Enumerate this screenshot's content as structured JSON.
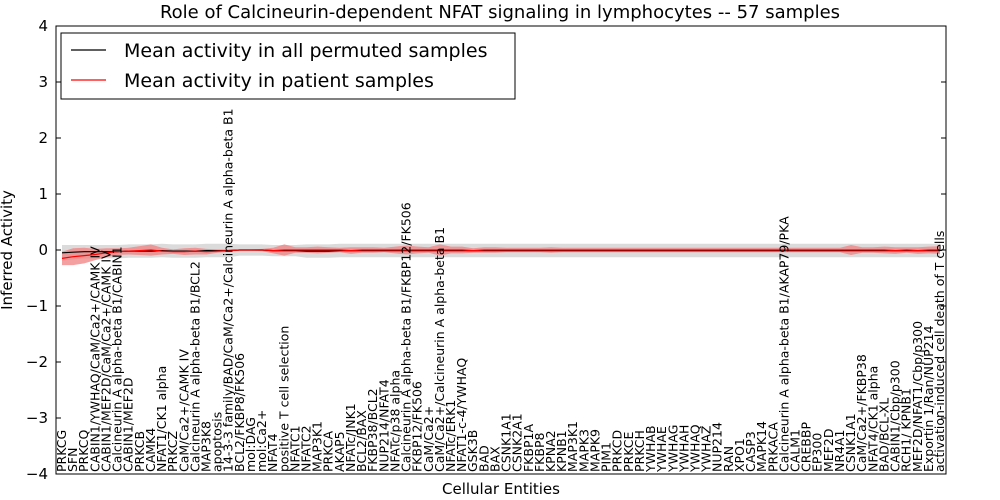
{
  "chart_data": {
    "type": "line",
    "title": "Role of Calcineurin-dependent NFAT signaling in lymphocytes -- 57 samples",
    "xlabel": "Cellular Entities",
    "ylabel": "Inferred Activity",
    "ylim": [
      -4,
      4
    ],
    "yticks": [
      "4",
      "3",
      "2",
      "1",
      "0",
      "−1",
      "−2",
      "−3",
      "−4"
    ],
    "legend": {
      "position": "top-left",
      "entries": [
        {
          "label": "Mean activity in all permuted samples",
          "color": "#000000"
        },
        {
          "label": "Mean activity in patient samples",
          "color": "#ff0000"
        }
      ]
    },
    "categories": [
      "PRKCG",
      "SFN",
      "PRKCQ",
      "CABIN1/YWHAQ/CaM/Ca2+/CAMK IV",
      "CABIN1/MEF2D/CaM/Ca2+/CAMK IV",
      "Calcineurin A alpha-beta B1/CABIN1",
      "CABIN1/MEF2D",
      "PRKCB",
      "CAMK4",
      "NFAT1/CK1 alpha",
      "PRKCZ",
      "CaM/Ca2+/CAMK IV",
      "Calcineurin A alpha-beta B1/BCL2",
      "MAP3K8",
      "apoptosis",
      "14-3-3 family/BAD/CaM/Ca2+/Calcineurin A alpha-beta B1",
      "BCL2/FKBP8/FK506",
      "mol:DAG",
      "mol:Ca2+",
      "NFAT4",
      "positive T cell selection",
      "NFATC1",
      "NFATC2",
      "MAP3K1",
      "PRKCA",
      "AKAP5",
      "NFATc/JNK1",
      "BCL2/BAX",
      "FKBP38/BCL2",
      "NUP214/NFAT4",
      "NFATc/p38 alpha",
      "Calcineurin A alpha-beta B1/FKBP12/FK506",
      "FKBP12/FK506",
      "CaM/Ca2+",
      "CaM/Ca2+/Calcineurin A alpha-beta B1",
      "NFATc/ERK1",
      "NFAT1-c-4/YWHAQ",
      "GSK3B",
      "BAD",
      "BAX",
      "CSNK1A1",
      "CSNK2A1",
      "FKBP1A",
      "FKBP8",
      "KPNA2",
      "KPNB1",
      "MAP3K1",
      "MAPK3",
      "MAPK9",
      "PIM1",
      "PRKCD",
      "PRKCE",
      "PRKCH",
      "YWHAB",
      "YWHAE",
      "YWHAG",
      "YWHAH",
      "YWHAQ",
      "YWHAZ",
      "NUP214",
      "RAN",
      "XPO1",
      "CASP3",
      "MAPK14",
      "PRKACA",
      "Calcineurin A alpha-beta B1/AKAP79/PKA",
      "CALM1",
      "CREBBP",
      "EP300",
      "MEF2D",
      "NR4A1",
      "CSNK1A1",
      "CaM/Ca2+/FKBP38",
      "NFAT4/CK1 alpha",
      "BAD/BCL-XL",
      "CABIN1/Cbp/p300",
      "RCH1/ KPNB1",
      "MEF2D/NFAT1/Cbp/p300",
      "Exportin 1/Ran/NUP214",
      "activation-induced cell death of T cells"
    ],
    "series": [
      {
        "name": "Mean activity in all permuted samples",
        "color": "#000000",
        "values": [
          -0.05,
          -0.04,
          -0.03,
          -0.03,
          -0.03,
          -0.03,
          -0.02,
          -0.02,
          -0.02,
          -0.01,
          -0.02,
          -0.02,
          -0.02,
          -0.01,
          -0.01,
          -0.01,
          0.0,
          0.0,
          0.0,
          -0.01,
          -0.01,
          -0.01,
          -0.02,
          -0.02,
          -0.02,
          -0.01,
          -0.01,
          -0.01,
          -0.01,
          -0.01,
          -0.01,
          -0.01,
          -0.01,
          -0.01,
          -0.01,
          -0.01,
          -0.01,
          -0.01,
          -0.01,
          -0.01,
          -0.01,
          -0.01,
          -0.01,
          -0.01,
          -0.01,
          -0.01,
          -0.01,
          -0.01,
          -0.01,
          -0.01,
          -0.01,
          -0.01,
          -0.01,
          -0.01,
          -0.01,
          -0.01,
          -0.01,
          -0.01,
          -0.01,
          -0.01,
          -0.01,
          -0.01,
          -0.01,
          -0.01,
          -0.01,
          -0.01,
          -0.01,
          -0.01,
          -0.01,
          -0.01,
          -0.01,
          -0.01,
          -0.01,
          -0.01,
          -0.01,
          -0.01,
          -0.01,
          -0.01,
          -0.01,
          -0.01
        ],
        "band": [
          0.14,
          0.13,
          0.12,
          0.12,
          0.12,
          0.12,
          0.12,
          0.12,
          0.12,
          0.12,
          0.12,
          0.12,
          0.12,
          0.12,
          0.12,
          0.12,
          0.1,
          0.1,
          0.1,
          0.1,
          0.1,
          0.1,
          0.12,
          0.12,
          0.12,
          0.12,
          0.12,
          0.12,
          0.12,
          0.12,
          0.12,
          0.12,
          0.12,
          0.12,
          0.12,
          0.12,
          0.12,
          0.12,
          0.12,
          0.12,
          0.12,
          0.12,
          0.12,
          0.12,
          0.12,
          0.12,
          0.12,
          0.12,
          0.12,
          0.12,
          0.12,
          0.12,
          0.12,
          0.12,
          0.12,
          0.12,
          0.12,
          0.12,
          0.12,
          0.12,
          0.12,
          0.12,
          0.12,
          0.12,
          0.12,
          0.12,
          0.12,
          0.12,
          0.12,
          0.12,
          0.12,
          0.12,
          0.12,
          0.12,
          0.12,
          0.12,
          0.12,
          0.12,
          0.12,
          0.12
        ]
      },
      {
        "name": "Mean activity in patient samples",
        "color": "#ff0000",
        "values": [
          -0.15,
          -0.12,
          -0.1,
          -0.08,
          -0.05,
          -0.03,
          -0.02,
          -0.01,
          0.0,
          -0.02,
          -0.03,
          -0.03,
          -0.02,
          -0.03,
          -0.02,
          -0.01,
          0.0,
          0.0,
          0.0,
          -0.01,
          0.0,
          0.0,
          0.0,
          0.0,
          0.0,
          0.0,
          -0.01,
          0.0,
          0.0,
          0.0,
          0.0,
          0.0,
          0.0,
          0.0,
          0.0,
          0.0,
          0.0,
          -0.01,
          0.0,
          0.0,
          0.0,
          0.0,
          0.0,
          0.0,
          0.0,
          0.0,
          0.0,
          0.0,
          0.0,
          0.0,
          0.0,
          0.0,
          0.0,
          0.0,
          0.0,
          0.0,
          0.0,
          0.0,
          0.0,
          0.0,
          0.0,
          0.0,
          0.0,
          0.0,
          0.0,
          0.0,
          0.0,
          0.0,
          0.0,
          0.0,
          0.0,
          0.0,
          0.0,
          0.0,
          0.0,
          -0.01,
          0.0,
          -0.01,
          0.0,
          0.0
        ],
        "band": [
          0.12,
          0.15,
          0.14,
          0.1,
          0.08,
          0.06,
          0.06,
          0.08,
          0.1,
          0.06,
          0.04,
          0.06,
          0.06,
          0.05,
          0.03,
          0.02,
          0.01,
          0.01,
          0.02,
          0.05,
          0.1,
          0.05,
          0.05,
          0.06,
          0.05,
          0.04,
          0.06,
          0.05,
          0.05,
          0.04,
          0.06,
          0.08,
          0.06,
          0.05,
          0.1,
          0.06,
          0.06,
          0.04,
          0.05,
          0.05,
          0.04,
          0.04,
          0.04,
          0.04,
          0.05,
          0.04,
          0.04,
          0.04,
          0.04,
          0.04,
          0.04,
          0.04,
          0.04,
          0.04,
          0.04,
          0.04,
          0.04,
          0.04,
          0.04,
          0.04,
          0.04,
          0.04,
          0.04,
          0.04,
          0.04,
          0.04,
          0.04,
          0.04,
          0.04,
          0.04,
          0.04,
          0.09,
          0.05,
          0.05,
          0.06,
          0.06,
          0.05,
          0.06,
          0.06,
          0.07
        ]
      }
    ]
  }
}
